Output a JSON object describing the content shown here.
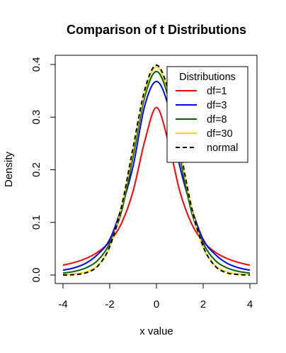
{
  "chart_data": {
    "type": "line",
    "title": "Comparison of t Distributions",
    "xlabel": "x value",
    "ylabel": "Density",
    "xlim": [
      -4,
      4
    ],
    "ylim": [
      0,
      0.4
    ],
    "xticks": [
      -4,
      -2,
      0,
      2,
      4
    ],
    "xtick_labels": [
      "-4",
      "-2",
      "0",
      "2",
      "4"
    ],
    "yticks": [
      0,
      0.1,
      0.2,
      0.3,
      0.4
    ],
    "ytick_labels": [
      "0.0",
      "0.1",
      "0.2",
      "0.3",
      "0.4"
    ],
    "grid": false,
    "legend": {
      "title": "Distributions",
      "position": "top-right"
    },
    "x": [
      -4,
      -3.5,
      -3,
      -2.5,
      -2,
      -1.5,
      -1,
      -0.5,
      0,
      0.5,
      1,
      1.5,
      2,
      2.5,
      3,
      3.5,
      4
    ],
    "series": [
      {
        "name": "df=1",
        "color": "#ff0000",
        "dash": "solid",
        "values": [
          0.0187,
          0.024,
          0.0318,
          0.0439,
          0.0637,
          0.0979,
          0.1592,
          0.2546,
          0.3183,
          0.2546,
          0.1592,
          0.0979,
          0.0637,
          0.0439,
          0.0318,
          0.024,
          0.0187
        ]
      },
      {
        "name": "df=3",
        "color": "#0000ff",
        "dash": "solid",
        "values": [
          0.0092,
          0.014,
          0.0229,
          0.0398,
          0.0675,
          0.1274,
          0.2067,
          0.322,
          0.3676,
          0.322,
          0.2067,
          0.1274,
          0.0675,
          0.0398,
          0.0229,
          0.014,
          0.0092
        ]
      },
      {
        "name": "df=8",
        "color": "#006400",
        "dash": "solid",
        "values": [
          0.0036,
          0.007,
          0.014,
          0.0283,
          0.0604,
          0.12,
          0.225,
          0.3387,
          0.3867,
          0.3387,
          0.225,
          0.12,
          0.0604,
          0.0283,
          0.014,
          0.007,
          0.0036
        ]
      },
      {
        "name": "df=30",
        "color": "#ffd700",
        "dash": "solid",
        "values": [
          0.0006,
          0.002,
          0.0062,
          0.0187,
          0.0533,
          0.128,
          0.2362,
          0.3472,
          0.3956,
          0.3472,
          0.2362,
          0.128,
          0.0533,
          0.0187,
          0.0062,
          0.002,
          0.0006
        ]
      },
      {
        "name": "normal",
        "color": "#000000",
        "dash": "dashed",
        "values": [
          0.0001,
          0.0009,
          0.0044,
          0.0175,
          0.054,
          0.1295,
          0.242,
          0.3521,
          0.3989,
          0.3521,
          0.242,
          0.1295,
          0.054,
          0.0175,
          0.0044,
          0.0009,
          0.0001
        ]
      }
    ]
  }
}
